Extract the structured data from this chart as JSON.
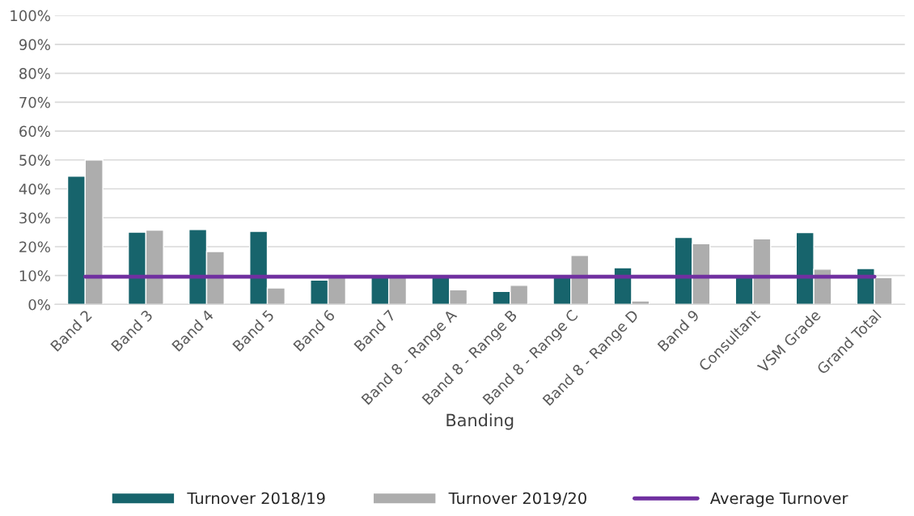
{
  "chart_data": {
    "type": "bar",
    "xlabel": "Banding",
    "categories": [
      "Band 2",
      "Band 3",
      "Band 4",
      "Band 5",
      "Band 6",
      "Band 7",
      "Band 8 - Range A",
      "Band 8 - Range B",
      "Band 8 - Range C",
      "Band 8 - Range D",
      "Band 9",
      "Consultant",
      "VSM Grade",
      "Grand Total"
    ],
    "series": [
      {
        "name": "Turnover 2018/19",
        "color": "#17646c",
        "values": [
          44.4,
          25.0,
          25.9,
          25.3,
          8.4,
          9.5,
          9.5,
          4.5,
          9.5,
          12.7,
          23.2,
          9.5,
          24.9,
          12.4
        ]
      },
      {
        "name": "Turnover 2019/20",
        "color": "#adadad",
        "values": [
          50.0,
          25.7,
          18.3,
          5.7,
          9.5,
          9.5,
          5.1,
          6.6,
          17.0,
          1.2,
          21.0,
          22.7,
          12.2,
          9.3
        ]
      },
      {
        "name": "Average Turnover",
        "type": "line",
        "color": "#7030a0",
        "marker": "none",
        "values": [
          9.6,
          9.6,
          9.6,
          9.6,
          9.6,
          9.6,
          9.6,
          9.6,
          9.6,
          9.6,
          9.6,
          9.6,
          9.6,
          9.6
        ]
      }
    ],
    "ylim": [
      0,
      100
    ],
    "yticks": [
      {
        "value": 0,
        "label": "0%"
      },
      {
        "value": 10,
        "label": "10%"
      },
      {
        "value": 20,
        "label": "20%"
      },
      {
        "value": 30,
        "label": "30%"
      },
      {
        "value": 40,
        "label": "40%"
      },
      {
        "value": 50,
        "label": "50%"
      },
      {
        "value": 60,
        "label": "60%"
      },
      {
        "value": 70,
        "label": "70%"
      },
      {
        "value": 80,
        "label": "80%"
      },
      {
        "value": 90,
        "label": "90%"
      },
      {
        "value": 100,
        "label": "100%"
      }
    ],
    "grid": "y",
    "legend": "bottom"
  }
}
